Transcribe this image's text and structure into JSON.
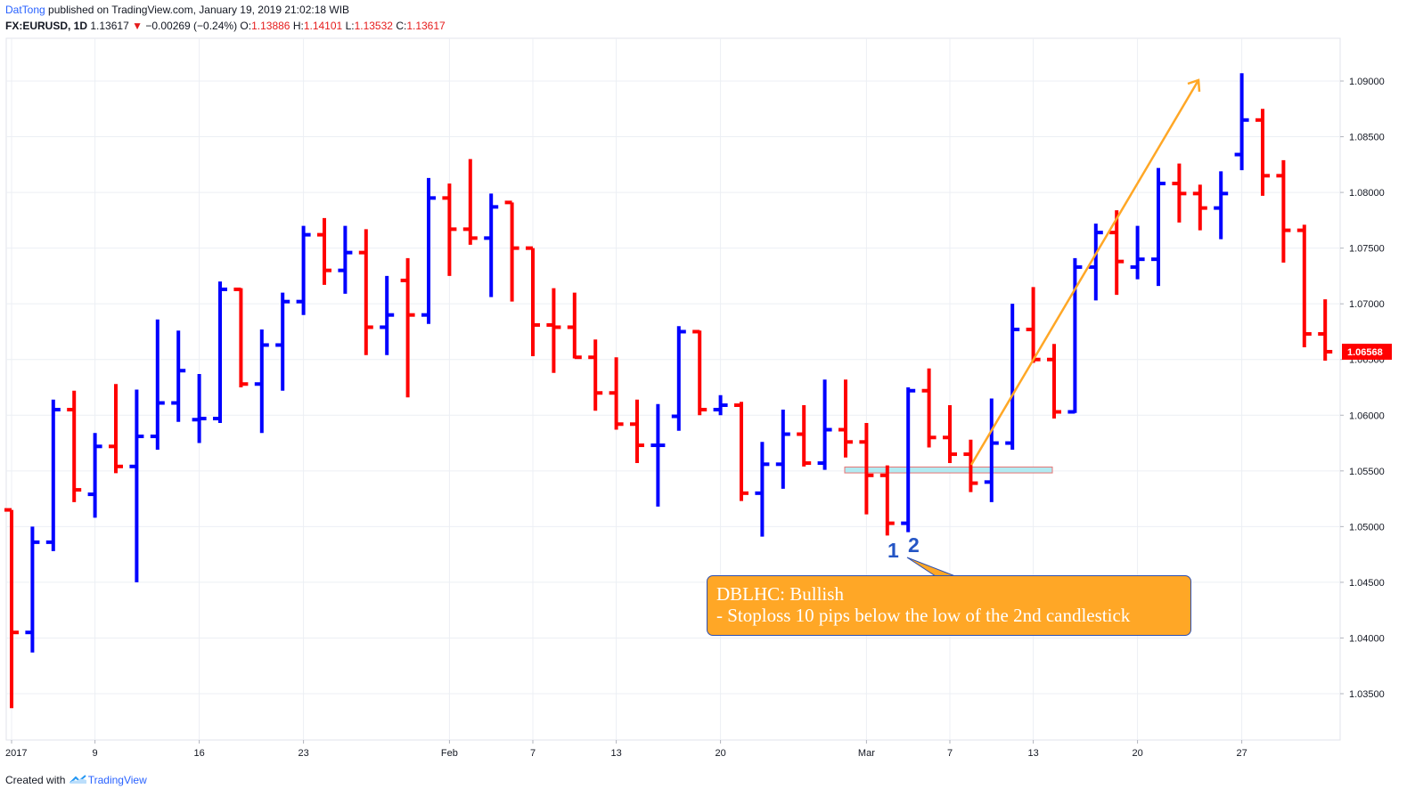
{
  "header": {
    "author": "DatTong",
    "published": "published on TradingView.com, January 19, 2019 21:02:18 WIB",
    "symbol": "FX:EURUSD, 1D",
    "last": "1.13617",
    "change_arrow": "▼",
    "change": "−0.00269 (−0.24%)",
    "o_label": "O:",
    "o": "1.13886",
    "h_label": "H:",
    "h": "1.14101",
    "l_label": "L:",
    "l": "1.13532",
    "c_label": "C:",
    "c": "1.13617"
  },
  "footer": {
    "created_with": "Created with",
    "brand": "TradingView",
    "logo_icon": "tradingview-cloud-icon"
  },
  "annotation": {
    "line1": "DBLHC: Bullish",
    "line2": "- Stoploss 10 pips below the low of the 2nd candlestick",
    "label_1": "1",
    "label_2": "2"
  },
  "price_label": "1.06568",
  "chart_data": {
    "type": "ohlc-bar",
    "up_color": "#0000ff",
    "down_color": "#ff0000",
    "annotation_color": "#ffa726",
    "ylim": [
      1.031,
      1.0935
    ],
    "y_ticks": [
      "1.03500",
      "1.04000",
      "1.04500",
      "1.05000",
      "1.05500",
      "1.06000",
      "1.06500",
      "1.07000",
      "1.07500",
      "1.08000",
      "1.08500",
      "1.09000"
    ],
    "x_ticks": [
      "2017",
      "9",
      "16",
      "23",
      "Feb",
      "7",
      "13",
      "20",
      "Mar",
      "7",
      "13",
      "20",
      "27"
    ],
    "bars": [
      {
        "o": 1.0515,
        "h": 1.0515,
        "l": 1.0337,
        "c": 1.0405
      },
      {
        "o": 1.0405,
        "h": 1.05,
        "l": 1.0387,
        "c": 1.0486
      },
      {
        "o": 1.0486,
        "h": 1.0614,
        "l": 1.0478,
        "c": 1.0605
      },
      {
        "o": 1.0605,
        "h": 1.0622,
        "l": 1.0522,
        "c": 1.0533
      },
      {
        "o": 1.0529,
        "h": 1.0584,
        "l": 1.0508,
        "c": 1.0572
      },
      {
        "o": 1.0572,
        "h": 1.0628,
        "l": 1.0548,
        "c": 1.0554
      },
      {
        "o": 1.0554,
        "h": 1.0623,
        "l": 1.045,
        "c": 1.0581
      },
      {
        "o": 1.0581,
        "h": 1.0686,
        "l": 1.0569,
        "c": 1.0611
      },
      {
        "o": 1.0611,
        "h": 1.0676,
        "l": 1.0594,
        "c": 1.064
      },
      {
        "o": 1.0596,
        "h": 1.0637,
        "l": 1.0575,
        "c": 1.0597
      },
      {
        "o": 1.0597,
        "h": 1.072,
        "l": 1.0593,
        "c": 1.0713
      },
      {
        "o": 1.0713,
        "h": 1.0714,
        "l": 1.0625,
        "c": 1.0628
      },
      {
        "o": 1.0628,
        "h": 1.0677,
        "l": 1.0584,
        "c": 1.0663
      },
      {
        "o": 1.0663,
        "h": 1.071,
        "l": 1.0622,
        "c": 1.0702
      },
      {
        "o": 1.0702,
        "h": 1.077,
        "l": 1.069,
        "c": 1.0762
      },
      {
        "o": 1.0762,
        "h": 1.0777,
        "l": 1.0717,
        "c": 1.073
      },
      {
        "o": 1.073,
        "h": 1.077,
        "l": 1.0709,
        "c": 1.0746
      },
      {
        "o": 1.0746,
        "h": 1.0767,
        "l": 1.0654,
        "c": 1.0679
      },
      {
        "o": 1.0679,
        "h": 1.0725,
        "l": 1.0654,
        "c": 1.069
      },
      {
        "o": 1.0721,
        "h": 1.0741,
        "l": 1.0616,
        "c": 1.069
      },
      {
        "o": 1.069,
        "h": 1.0813,
        "l": 1.0682,
        "c": 1.0795
      },
      {
        "o": 1.0795,
        "h": 1.0808,
        "l": 1.0725,
        "c": 1.0767
      },
      {
        "o": 1.0767,
        "h": 1.083,
        "l": 1.0753,
        "c": 1.0759
      },
      {
        "o": 1.0759,
        "h": 1.0799,
        "l": 1.0706,
        "c": 1.0787
      },
      {
        "o": 1.0791,
        "h": 1.0791,
        "l": 1.0702,
        "c": 1.075
      },
      {
        "o": 1.075,
        "h": 1.075,
        "l": 1.0653,
        "c": 1.0681
      },
      {
        "o": 1.0681,
        "h": 1.0714,
        "l": 1.0638,
        "c": 1.0679
      },
      {
        "o": 1.0679,
        "h": 1.071,
        "l": 1.0651,
        "c": 1.0652
      },
      {
        "o": 1.0652,
        "h": 1.0668,
        "l": 1.0604,
        "c": 1.062
      },
      {
        "o": 1.062,
        "h": 1.0652,
        "l": 1.0587,
        "c": 1.0592
      },
      {
        "o": 1.0592,
        "h": 1.0614,
        "l": 1.0557,
        "c": 1.0573
      },
      {
        "o": 1.0573,
        "h": 1.061,
        "l": 1.0518,
        "c": 1.0573
      },
      {
        "o": 1.0599,
        "h": 1.068,
        "l": 1.0586,
        "c": 1.0675
      },
      {
        "o": 1.0675,
        "h": 1.0676,
        "l": 1.06,
        "c": 1.0605
      },
      {
        "o": 1.0605,
        "h": 1.0618,
        "l": 1.06,
        "c": 1.0609
      },
      {
        "o": 1.0609,
        "h": 1.0612,
        "l": 1.0523,
        "c": 1.053
      },
      {
        "o": 1.053,
        "h": 1.0576,
        "l": 1.0491,
        "c": 1.0556
      },
      {
        "o": 1.0556,
        "h": 1.0605,
        "l": 1.0534,
        "c": 1.0583
      },
      {
        "o": 1.0583,
        "h": 1.0609,
        "l": 1.0554,
        "c": 1.0557
      },
      {
        "o": 1.0557,
        "h": 1.0632,
        "l": 1.0551,
        "c": 1.0587
      },
      {
        "o": 1.0587,
        "h": 1.0632,
        "l": 1.0562,
        "c": 1.0576
      },
      {
        "o": 1.0576,
        "h": 1.0593,
        "l": 1.0511,
        "c": 1.0546
      },
      {
        "o": 1.0546,
        "h": 1.0555,
        "l": 1.0492,
        "c": 1.0503
      },
      {
        "o": 1.0503,
        "h": 1.0625,
        "l": 1.0495,
        "c": 1.0622
      },
      {
        "o": 1.0622,
        "h": 1.0642,
        "l": 1.0571,
        "c": 1.058
      },
      {
        "o": 1.058,
        "h": 1.0609,
        "l": 1.0557,
        "c": 1.0565
      },
      {
        "o": 1.0565,
        "h": 1.0578,
        "l": 1.0531,
        "c": 1.0539
      },
      {
        "o": 1.054,
        "h": 1.0615,
        "l": 1.0522,
        "c": 1.0575
      },
      {
        "o": 1.0575,
        "h": 1.07,
        "l": 1.0569,
        "c": 1.0677
      },
      {
        "o": 1.0677,
        "h": 1.0715,
        "l": 1.0647,
        "c": 1.065
      },
      {
        "o": 1.065,
        "h": 1.0664,
        "l": 1.0597,
        "c": 1.0603
      },
      {
        "o": 1.0603,
        "h": 1.0741,
        "l": 1.0602,
        "c": 1.0733
      },
      {
        "o": 1.0733,
        "h": 1.0772,
        "l": 1.0703,
        "c": 1.0764
      },
      {
        "o": 1.0764,
        "h": 1.0784,
        "l": 1.0708,
        "c": 1.0738
      },
      {
        "o": 1.0733,
        "h": 1.077,
        "l": 1.0722,
        "c": 1.074
      },
      {
        "o": 1.074,
        "h": 1.0822,
        "l": 1.0716,
        "c": 1.0808
      },
      {
        "o": 1.0808,
        "h": 1.0826,
        "l": 1.0773,
        "c": 1.0799
      },
      {
        "o": 1.0799,
        "h": 1.0807,
        "l": 1.0766,
        "c": 1.0786
      },
      {
        "o": 1.0786,
        "h": 1.0819,
        "l": 1.0758,
        "c": 1.0799
      },
      {
        "o": 1.0834,
        "h": 1.0907,
        "l": 1.082,
        "c": 1.0865
      },
      {
        "o": 1.0865,
        "h": 1.0875,
        "l": 1.0797,
        "c": 1.0815
      },
      {
        "o": 1.0815,
        "h": 1.0829,
        "l": 1.0737,
        "c": 1.0766
      },
      {
        "o": 1.0766,
        "h": 1.0771,
        "l": 1.0661,
        "c": 1.0673
      },
      {
        "o": 1.0673,
        "h": 1.0704,
        "l": 1.0649,
        "c": 1.0657
      }
    ]
  }
}
